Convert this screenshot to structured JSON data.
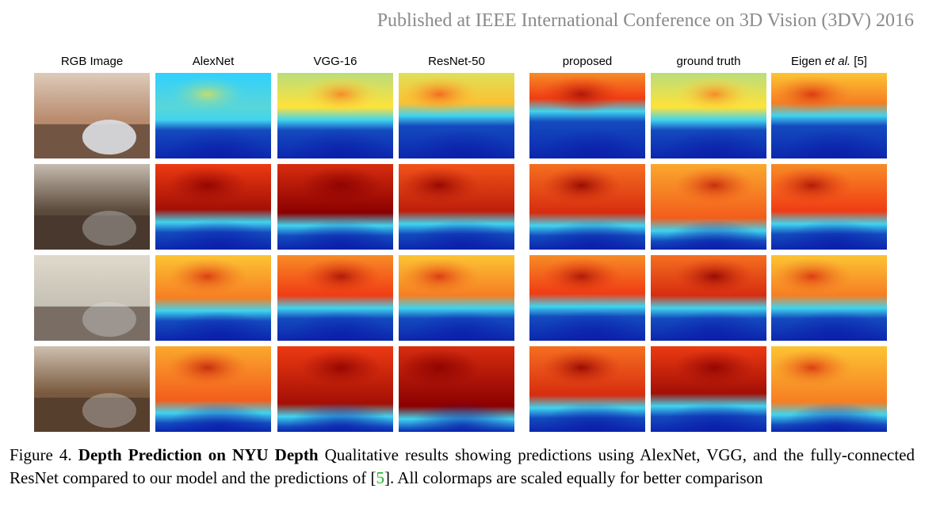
{
  "header": "Published at IEEE International Conference on 3D Vision (3DV) 2016",
  "columns": [
    {
      "label": "RGB Image"
    },
    {
      "label": "AlexNet"
    },
    {
      "label": "VGG-16"
    },
    {
      "label": "ResNet-50"
    },
    {
      "label": "proposed"
    },
    {
      "label": "ground truth"
    },
    {
      "label_prefix": "Eigen ",
      "label_em": "et al.",
      "label_suffix": " [5]"
    }
  ],
  "rows": [
    {
      "scene": "living room with couch and white chair"
    },
    {
      "scene": "living room with windows and sofa"
    },
    {
      "scene": "office room with table and chairs"
    },
    {
      "scene": "library with bookshelves"
    }
  ],
  "caption": {
    "figure_label": "Figure 4.",
    "bold_title": "Depth Prediction on NYU Depth",
    "text_before_ref": " Qualitative results showing predictions using AlexNet, VGG, and the fully-connected ResNet compared to our model and the predictions of [",
    "ref": "5",
    "text_after_ref": "].  All colormaps are scaled equally for better comparison"
  },
  "colors": {
    "header": "#8a8a8a",
    "reference": "#1bb51b",
    "depth_near": "#0a1aa8",
    "depth_mid": "#2fd3ff",
    "depth_mid2": "#ffe23a",
    "depth_far": "#8b0000"
  }
}
